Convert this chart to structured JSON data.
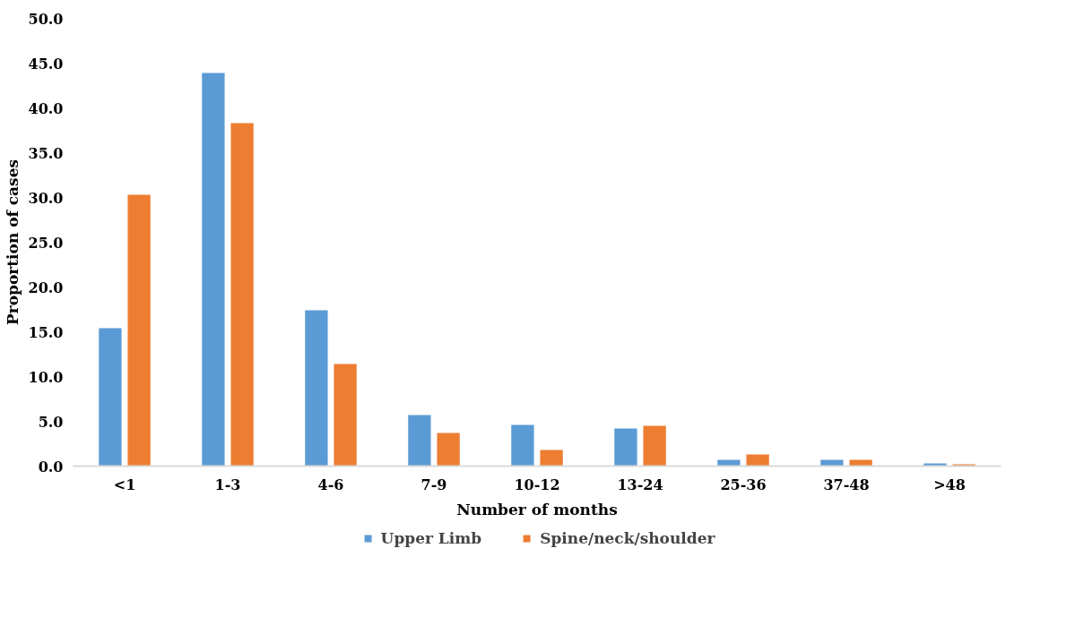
{
  "chart_data": {
    "type": "bar",
    "xlabel": "Number of months",
    "ylabel": "Proportion of cases",
    "categories": [
      "<1",
      "1-3",
      "4-6",
      "7-9",
      "10-12",
      "13-24",
      "25-36",
      "37-48",
      ">48"
    ],
    "series": [
      {
        "name": "Upper Limb",
        "color": "#5b9bd5",
        "values": [
          15.4,
          43.9,
          17.4,
          5.7,
          4.6,
          4.2,
          0.7,
          0.7,
          0.3
        ]
      },
      {
        "name": "Spine/neck/shoulder",
        "color": "#ed7d31",
        "values": [
          30.3,
          38.3,
          11.4,
          3.7,
          1.8,
          4.5,
          1.3,
          0.7,
          0.2
        ]
      }
    ],
    "ylim": [
      0,
      50
    ],
    "yticks": [
      {
        "value": 0,
        "label": "0.0"
      },
      {
        "value": 5,
        "label": "5.0"
      },
      {
        "value": 10,
        "label": "10.0"
      },
      {
        "value": 15,
        "label": "15.0"
      },
      {
        "value": 20,
        "label": "20.0"
      },
      {
        "value": 25,
        "label": "25.0"
      },
      {
        "value": 30,
        "label": "30.0"
      },
      {
        "value": 35,
        "label": "35.0"
      },
      {
        "value": 40,
        "label": "40.0"
      },
      {
        "value": 45,
        "label": "45.0"
      },
      {
        "value": 50,
        "label": "50.0"
      }
    ],
    "grid": false,
    "legend": "bottom"
  }
}
